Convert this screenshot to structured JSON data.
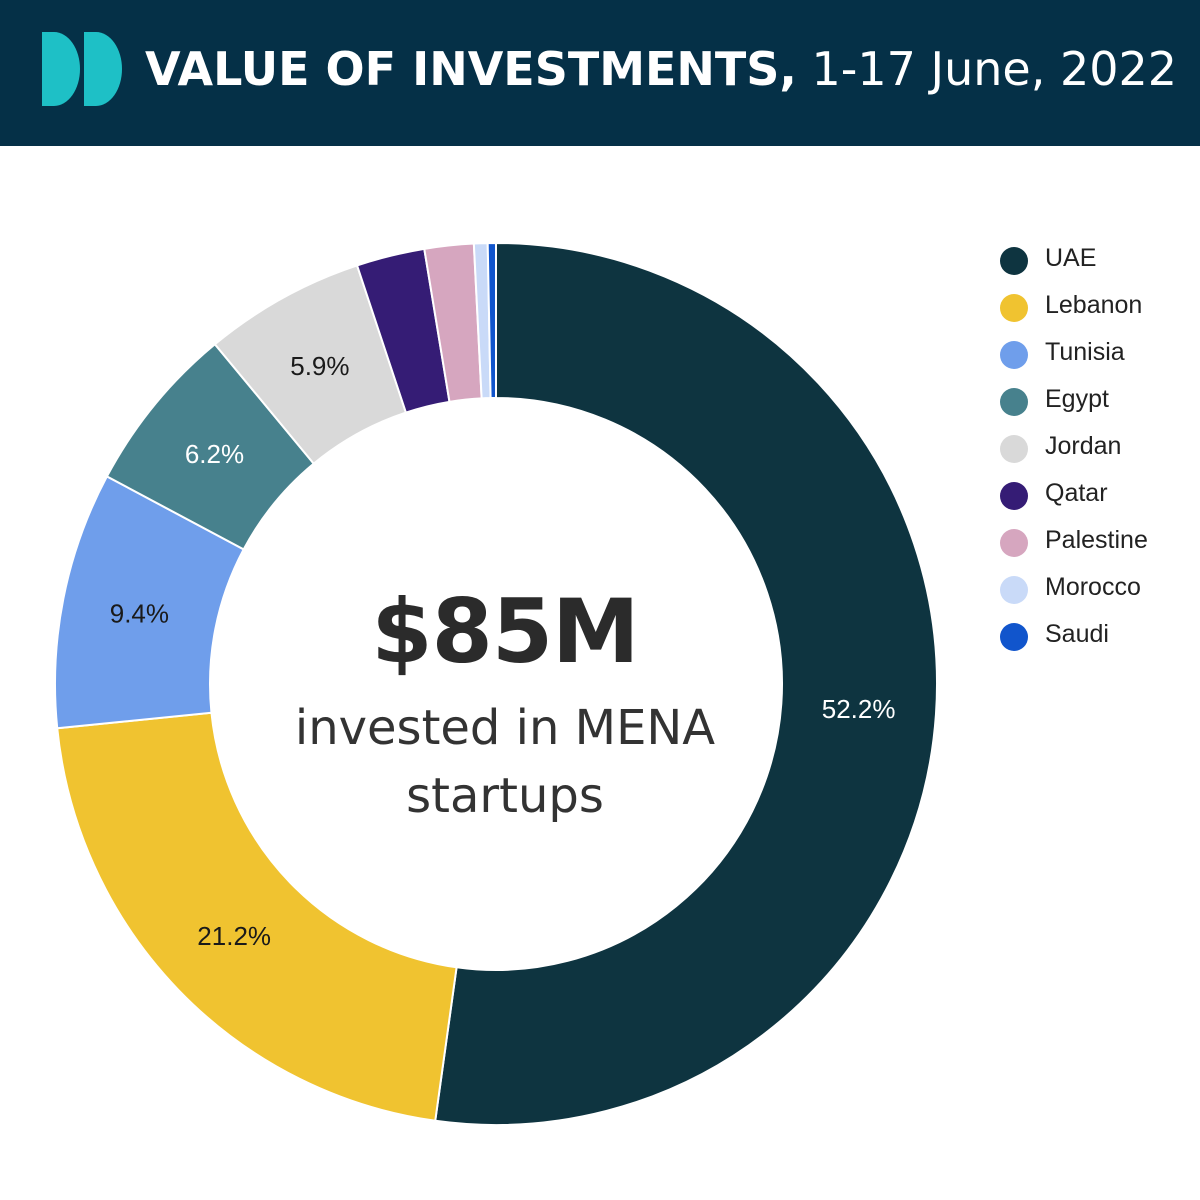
{
  "header": {
    "title_bold": "VALUE OF INVESTMENTS,",
    "title_rest": " 1-17 June, 2022"
  },
  "center": {
    "value": "$85M",
    "caption": "invested in MENA startups"
  },
  "colors": {
    "header_bg": "#053047",
    "logo": "#1ec0c6"
  },
  "icons": {
    "logo": "double-d-logo-icon"
  },
  "chart_data": {
    "type": "pie",
    "style": "donut",
    "title": "VALUE OF INVESTMENTS, 1-17 June, 2022",
    "unit": "percent",
    "legend_position": "right",
    "series": [
      {
        "name": "UAE",
        "value": 52.2,
        "label": "52.2%",
        "color": "#0e3440",
        "label_color": "#ffffff"
      },
      {
        "name": "Lebanon",
        "value": 21.2,
        "label": "21.2%",
        "color": "#f0c330",
        "label_color": "#1a1a1a"
      },
      {
        "name": "Tunisia",
        "value": 9.4,
        "label": "9.4%",
        "color": "#6f9eeb",
        "label_color": "#1a1a1a"
      },
      {
        "name": "Egypt",
        "value": 6.2,
        "label": "6.2%",
        "color": "#47818d",
        "label_color": "#ffffff"
      },
      {
        "name": "Jordan",
        "value": 5.9,
        "label": "5.9%",
        "color": "#d9d9d9",
        "label_color": "#1a1a1a"
      },
      {
        "name": "Qatar",
        "value": 2.5,
        "label": "",
        "color": "#351c75",
        "label_color": "#ffffff"
      },
      {
        "name": "Palestine",
        "value": 1.8,
        "label": "",
        "color": "#d6a6bf",
        "label_color": "#1a1a1a"
      },
      {
        "name": "Morocco",
        "value": 0.5,
        "label": "",
        "color": "#c9daf8",
        "label_color": "#1a1a1a"
      },
      {
        "name": "Saudi",
        "value": 0.3,
        "label": "",
        "color": "#1155cc",
        "label_color": "#ffffff"
      }
    ]
  }
}
